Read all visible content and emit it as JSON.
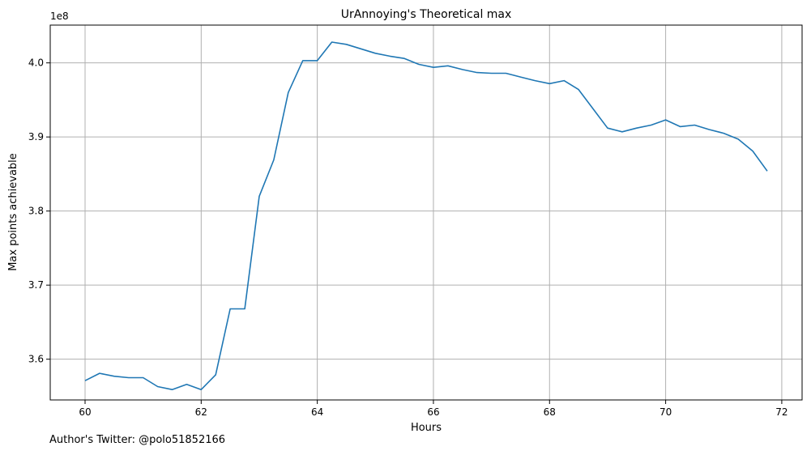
{
  "chart_data": {
    "type": "line",
    "title": "UrAnnoying's Theoretical max",
    "xlabel": "Hours",
    "ylabel": "Max points achievable",
    "y_offset_label": "1e8",
    "xlim": [
      59.4,
      72.35
    ],
    "ylim": [
      3.545,
      4.051
    ],
    "xticks": [
      60,
      62,
      64,
      66,
      68,
      70,
      72
    ],
    "yticks": [
      3.6,
      3.7,
      3.8,
      3.9,
      4.0
    ],
    "grid": true,
    "line_color": "#1f77b4",
    "series": [
      {
        "x": [
          60.0,
          60.25,
          60.5,
          60.75,
          61.0,
          61.25,
          61.5,
          61.75,
          62.0,
          62.25,
          62.5,
          62.75,
          63.0,
          63.25,
          63.5,
          63.75,
          64.0,
          64.25,
          64.5,
          64.75,
          65.0,
          65.25,
          65.5,
          65.75,
          66.0,
          66.25,
          66.5,
          66.75,
          67.0,
          67.25,
          67.5,
          67.75,
          68.0,
          68.25,
          68.5,
          68.75,
          69.0,
          69.25,
          69.5,
          69.75,
          70.0,
          70.25,
          70.5,
          70.75,
          71.0,
          71.25,
          71.5,
          71.75
        ],
        "y": [
          3.571,
          3.581,
          3.577,
          3.575,
          3.575,
          3.563,
          3.559,
          3.566,
          3.559,
          3.579,
          3.668,
          3.668,
          3.82,
          3.869,
          3.96,
          4.003,
          4.003,
          4.028,
          4.025,
          4.019,
          4.013,
          4.009,
          4.006,
          3.998,
          3.994,
          3.996,
          3.991,
          3.987,
          3.986,
          3.986,
          3.981,
          3.976,
          3.972,
          3.976,
          3.964,
          3.938,
          3.912,
          3.907,
          3.912,
          3.916,
          3.923,
          3.914,
          3.916,
          3.91,
          3.905,
          3.897,
          3.881,
          3.854
        ]
      }
    ]
  },
  "footer": "Author's Twitter: @polo51852166"
}
